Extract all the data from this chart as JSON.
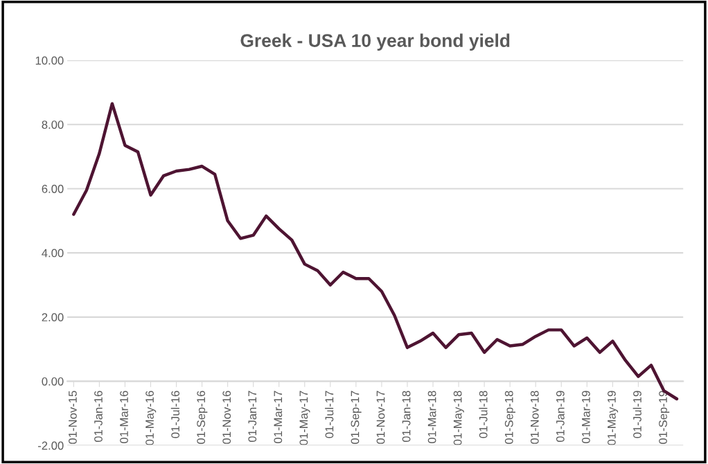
{
  "chart_data": {
    "type": "line",
    "title": "Greek - USA 10 year bond yield",
    "categories": [
      "01-Nov-15",
      null,
      "01-Jan-16",
      null,
      "01-Mar-16",
      null,
      "01-May-16",
      null,
      "01-Jul-16",
      null,
      "01-Sep-16",
      null,
      "01-Nov-16",
      null,
      "01-Jan-17",
      null,
      "01-Mar-17",
      null,
      "01-May-17",
      null,
      "01-Jul-17",
      null,
      "01-Sep-17",
      null,
      "01-Nov-17",
      null,
      "01-Jan-18",
      null,
      "01-Mar-18",
      null,
      "01-May-18",
      null,
      "01-Jul-18",
      null,
      "01-Sep-18",
      null,
      "01-Nov-18",
      null,
      "01-Jan-19",
      null,
      "01-Mar-19",
      null,
      "01-May-19",
      null,
      "01-Jul-19",
      null,
      "01-Sep-19",
      null
    ],
    "series": [
      {
        "color": "#4e1432",
        "values": [
          5.2,
          5.95,
          7.1,
          8.65,
          7.35,
          7.15,
          5.8,
          6.4,
          6.55,
          6.6,
          6.7,
          6.45,
          5.0,
          4.45,
          4.55,
          5.15,
          4.75,
          4.4,
          3.65,
          3.45,
          3.0,
          3.4,
          3.2,
          3.2,
          2.8,
          2.05,
          1.05,
          1.25,
          1.5,
          1.05,
          1.45,
          1.5,
          0.9,
          1.3,
          1.1,
          1.15,
          1.4,
          1.6,
          1.6,
          1.1,
          1.35,
          0.9,
          1.25,
          0.65,
          0.15,
          0.5,
          -0.3,
          -0.55
        ]
      }
    ],
    "ylim": [
      -2,
      10
    ],
    "yticks": [
      {
        "value": -2,
        "label": "-2.00"
      },
      {
        "value": 0,
        "label": "0.00"
      },
      {
        "value": 2,
        "label": "2.00"
      },
      {
        "value": 4,
        "label": "4.00"
      },
      {
        "value": 6,
        "label": "6.00"
      },
      {
        "value": 8,
        "label": "8.00"
      },
      {
        "value": 10,
        "label": "10.00"
      }
    ],
    "grid": "y",
    "marker": "none",
    "line_style": "solid"
  }
}
